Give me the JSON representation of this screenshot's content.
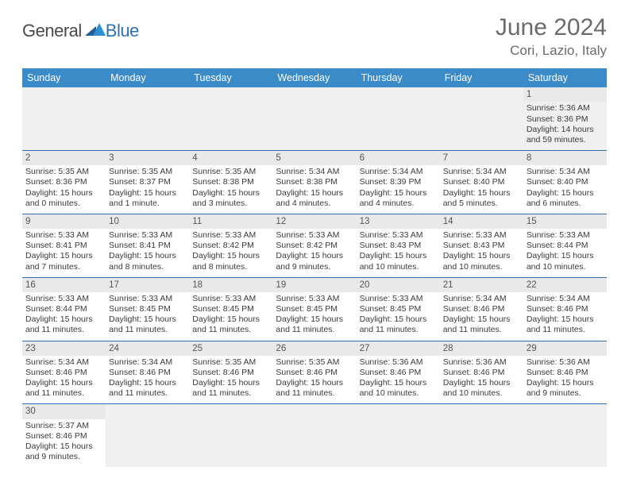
{
  "brand": {
    "general": "General",
    "blue": "Blue"
  },
  "title": "June 2024",
  "location": "Cori, Lazio, Italy",
  "colors": {
    "header_bg": "#3b8bc9",
    "header_text": "#ffffff",
    "border": "#2f6fb0",
    "daynum_bg": "#e9e9e9",
    "empty_bg": "#f0f0f0",
    "text": "#3a3a3a",
    "title_text": "#6b6b6b",
    "logo_general": "#4a4a4a",
    "logo_blue": "#2f6fb0"
  },
  "weekdays": [
    "Sunday",
    "Monday",
    "Tuesday",
    "Wednesday",
    "Thursday",
    "Friday",
    "Saturday"
  ],
  "weeks": [
    [
      null,
      null,
      null,
      null,
      null,
      null,
      {
        "n": "1",
        "sr": "Sunrise: 5:36 AM",
        "ss": "Sunset: 8:36 PM",
        "dl": "Daylight: 14 hours and 59 minutes."
      }
    ],
    [
      {
        "n": "2",
        "sr": "Sunrise: 5:35 AM",
        "ss": "Sunset: 8:36 PM",
        "dl": "Daylight: 15 hours and 0 minutes."
      },
      {
        "n": "3",
        "sr": "Sunrise: 5:35 AM",
        "ss": "Sunset: 8:37 PM",
        "dl": "Daylight: 15 hours and 1 minute."
      },
      {
        "n": "4",
        "sr": "Sunrise: 5:35 AM",
        "ss": "Sunset: 8:38 PM",
        "dl": "Daylight: 15 hours and 3 minutes."
      },
      {
        "n": "5",
        "sr": "Sunrise: 5:34 AM",
        "ss": "Sunset: 8:38 PM",
        "dl": "Daylight: 15 hours and 4 minutes."
      },
      {
        "n": "6",
        "sr": "Sunrise: 5:34 AM",
        "ss": "Sunset: 8:39 PM",
        "dl": "Daylight: 15 hours and 4 minutes."
      },
      {
        "n": "7",
        "sr": "Sunrise: 5:34 AM",
        "ss": "Sunset: 8:40 PM",
        "dl": "Daylight: 15 hours and 5 minutes."
      },
      {
        "n": "8",
        "sr": "Sunrise: 5:34 AM",
        "ss": "Sunset: 8:40 PM",
        "dl": "Daylight: 15 hours and 6 minutes."
      }
    ],
    [
      {
        "n": "9",
        "sr": "Sunrise: 5:33 AM",
        "ss": "Sunset: 8:41 PM",
        "dl": "Daylight: 15 hours and 7 minutes."
      },
      {
        "n": "10",
        "sr": "Sunrise: 5:33 AM",
        "ss": "Sunset: 8:41 PM",
        "dl": "Daylight: 15 hours and 8 minutes."
      },
      {
        "n": "11",
        "sr": "Sunrise: 5:33 AM",
        "ss": "Sunset: 8:42 PM",
        "dl": "Daylight: 15 hours and 8 minutes."
      },
      {
        "n": "12",
        "sr": "Sunrise: 5:33 AM",
        "ss": "Sunset: 8:42 PM",
        "dl": "Daylight: 15 hours and 9 minutes."
      },
      {
        "n": "13",
        "sr": "Sunrise: 5:33 AM",
        "ss": "Sunset: 8:43 PM",
        "dl": "Daylight: 15 hours and 10 minutes."
      },
      {
        "n": "14",
        "sr": "Sunrise: 5:33 AM",
        "ss": "Sunset: 8:43 PM",
        "dl": "Daylight: 15 hours and 10 minutes."
      },
      {
        "n": "15",
        "sr": "Sunrise: 5:33 AM",
        "ss": "Sunset: 8:44 PM",
        "dl": "Daylight: 15 hours and 10 minutes."
      }
    ],
    [
      {
        "n": "16",
        "sr": "Sunrise: 5:33 AM",
        "ss": "Sunset: 8:44 PM",
        "dl": "Daylight: 15 hours and 11 minutes."
      },
      {
        "n": "17",
        "sr": "Sunrise: 5:33 AM",
        "ss": "Sunset: 8:45 PM",
        "dl": "Daylight: 15 hours and 11 minutes."
      },
      {
        "n": "18",
        "sr": "Sunrise: 5:33 AM",
        "ss": "Sunset: 8:45 PM",
        "dl": "Daylight: 15 hours and 11 minutes."
      },
      {
        "n": "19",
        "sr": "Sunrise: 5:33 AM",
        "ss": "Sunset: 8:45 PM",
        "dl": "Daylight: 15 hours and 11 minutes."
      },
      {
        "n": "20",
        "sr": "Sunrise: 5:33 AM",
        "ss": "Sunset: 8:45 PM",
        "dl": "Daylight: 15 hours and 11 minutes."
      },
      {
        "n": "21",
        "sr": "Sunrise: 5:34 AM",
        "ss": "Sunset: 8:46 PM",
        "dl": "Daylight: 15 hours and 11 minutes."
      },
      {
        "n": "22",
        "sr": "Sunrise: 5:34 AM",
        "ss": "Sunset: 8:46 PM",
        "dl": "Daylight: 15 hours and 11 minutes."
      }
    ],
    [
      {
        "n": "23",
        "sr": "Sunrise: 5:34 AM",
        "ss": "Sunset: 8:46 PM",
        "dl": "Daylight: 15 hours and 11 minutes."
      },
      {
        "n": "24",
        "sr": "Sunrise: 5:34 AM",
        "ss": "Sunset: 8:46 PM",
        "dl": "Daylight: 15 hours and 11 minutes."
      },
      {
        "n": "25",
        "sr": "Sunrise: 5:35 AM",
        "ss": "Sunset: 8:46 PM",
        "dl": "Daylight: 15 hours and 11 minutes."
      },
      {
        "n": "26",
        "sr": "Sunrise: 5:35 AM",
        "ss": "Sunset: 8:46 PM",
        "dl": "Daylight: 15 hours and 11 minutes."
      },
      {
        "n": "27",
        "sr": "Sunrise: 5:36 AM",
        "ss": "Sunset: 8:46 PM",
        "dl": "Daylight: 15 hours and 10 minutes."
      },
      {
        "n": "28",
        "sr": "Sunrise: 5:36 AM",
        "ss": "Sunset: 8:46 PM",
        "dl": "Daylight: 15 hours and 10 minutes."
      },
      {
        "n": "29",
        "sr": "Sunrise: 5:36 AM",
        "ss": "Sunset: 8:46 PM",
        "dl": "Daylight: 15 hours and 9 minutes."
      }
    ],
    [
      {
        "n": "30",
        "sr": "Sunrise: 5:37 AM",
        "ss": "Sunset: 8:46 PM",
        "dl": "Daylight: 15 hours and 9 minutes."
      },
      null,
      null,
      null,
      null,
      null,
      null
    ]
  ]
}
